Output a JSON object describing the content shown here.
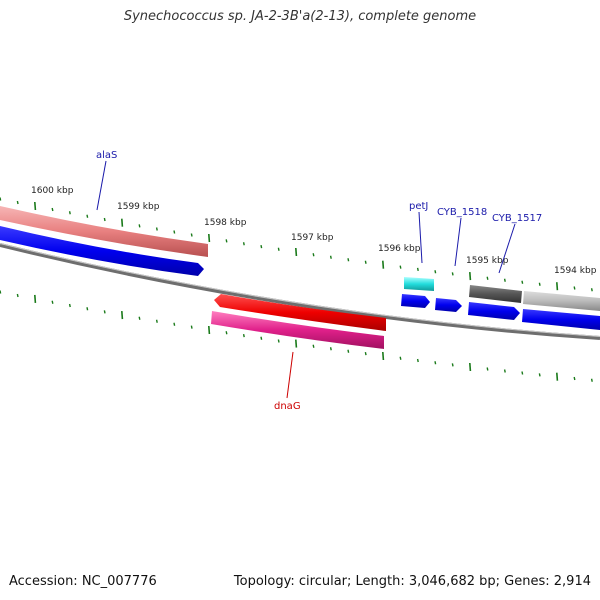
{
  "header": {
    "title": "Synechococcus sp. JA-2-3B'a(2-13), complete genome"
  },
  "footer": {
    "accession": "Accession: NC_007776",
    "summary": "Topology: circular; Length: 3,046,682 bp; Genes: 2,914"
  },
  "map": {
    "kbp_labels": [
      "1600 kbp",
      "1599 kbp",
      "1598 kbp",
      "1597 kbp",
      "1596 kbp",
      "1595 kbp",
      "1594 kbp"
    ],
    "gene_labels": [
      {
        "name": "alaS",
        "color": "#1a1aaa"
      },
      {
        "name": "petJ",
        "color": "#1a1aaa"
      },
      {
        "name": "CYB_1518",
        "color": "#1a1aaa"
      },
      {
        "name": "CYB_1517",
        "color": "#1a1aaa"
      },
      {
        "name": "dnaG",
        "color": "#cc0000"
      }
    ],
    "colors": {
      "backbone": "#777777",
      "tick": "#1a7a1a",
      "forward_cds": "#0000ee",
      "salmon_feature": "#e88080",
      "red_feature": "#ee0000",
      "magenta_feature": "#e0208a",
      "cyan_feature": "#22dddd",
      "dark_gray_feature": "#555555",
      "light_gray_feature": "#bbbbbb"
    }
  }
}
